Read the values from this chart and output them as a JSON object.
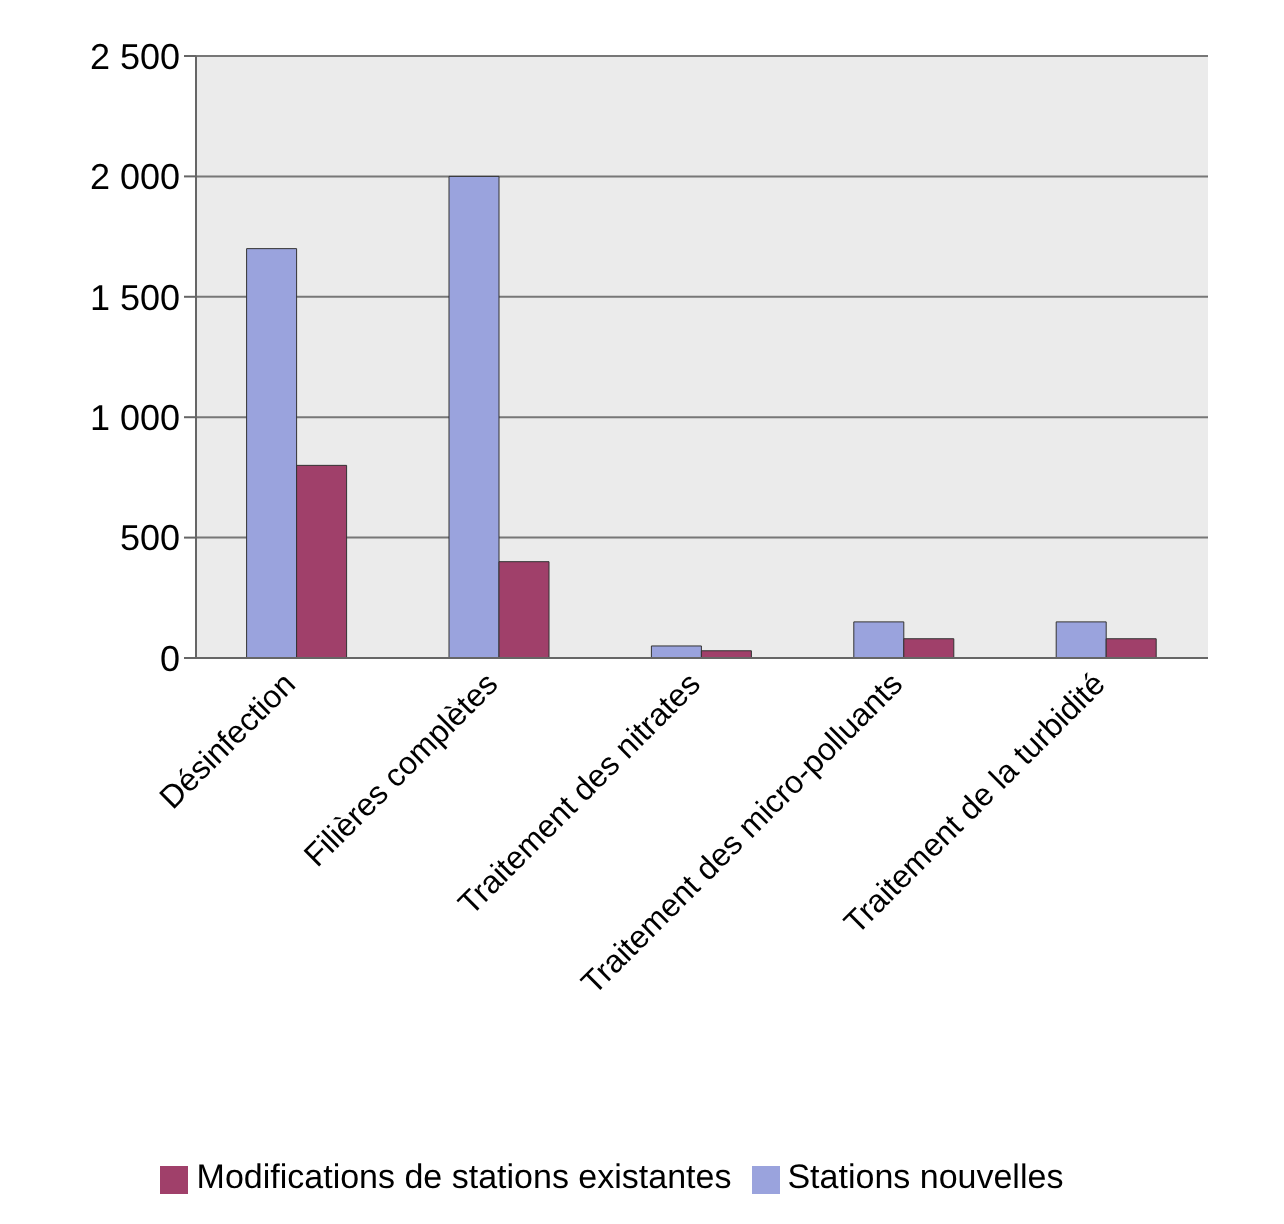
{
  "chart_data": {
    "type": "bar",
    "categories": [
      "Désinfection",
      "Filières complètes",
      "Traitement des nitrates",
      "Traitement des micro-polluants",
      "Traitement de la turbidité"
    ],
    "series": [
      {
        "name": "Stations nouvelles",
        "color": "#9aa3dd",
        "values": [
          1700,
          2000,
          50,
          150,
          150
        ]
      },
      {
        "name": "Modifications de stations existantes",
        "color": "#a0406a",
        "values": [
          800,
          400,
          30,
          80,
          80
        ]
      }
    ],
    "ylim": [
      0,
      2500
    ],
    "yticks": [
      0,
      {
        "value": 500,
        "label": "500"
      },
      {
        "value": 1000,
        "label": "1 000"
      },
      {
        "value": 1500,
        "label": "1 500"
      },
      {
        "value": 2000,
        "label": "2 000"
      },
      {
        "value": 2500,
        "label": "2 500"
      }
    ],
    "grid": "y",
    "legend": "bottom"
  }
}
